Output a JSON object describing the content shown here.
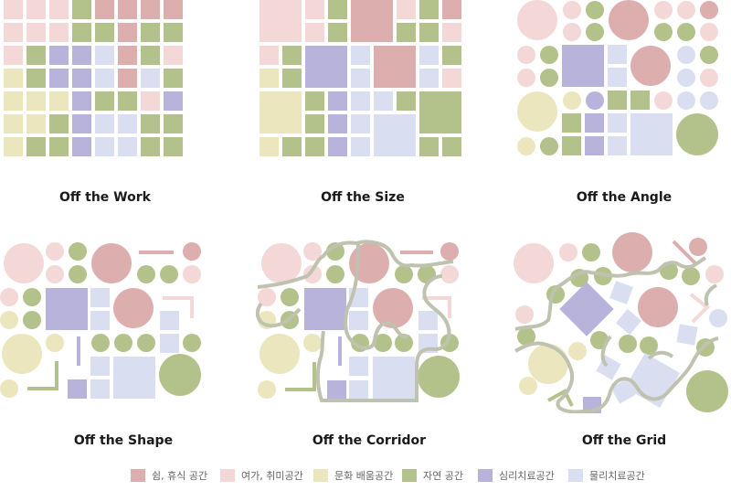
{
  "colors": {
    "rest": "#dcaeae",
    "hobby": "#f4d7d7",
    "culture": "#ebe6bd",
    "nature": "#b3c28b",
    "psych": "#b7b3db",
    "physio": "#d9dff1",
    "corridor": "#bfc2ae"
  },
  "captions": {
    "work": "Off the Work",
    "size": "Off the Size",
    "angle": "Off the Angle",
    "shape": "Off the Shape",
    "corridor": "Off the Corridor",
    "grid": "Off the Grid"
  },
  "legend": [
    {
      "key": "rest",
      "label": "쉼, 휴식 공간"
    },
    {
      "key": "hobby",
      "label": "여가, 취미공간"
    },
    {
      "key": "culture",
      "label": "문화 배움공간"
    },
    {
      "key": "nature",
      "label": "자연 공간"
    },
    {
      "key": "psych",
      "label": "심리치료공간"
    },
    {
      "key": "physio",
      "label": "물리치료공간"
    }
  ],
  "work_grid": [
    [
      "hobby",
      "hobby",
      "hobby",
      "nature",
      "rest",
      "rest",
      "rest",
      "rest"
    ],
    [
      "hobby",
      "hobby",
      "hobby",
      "nature",
      "nature",
      "rest",
      "nature",
      "nature"
    ],
    [
      "hobby",
      "nature",
      "psych",
      "psych",
      "physio",
      "rest",
      "nature",
      "hobby"
    ],
    [
      "culture",
      "nature",
      "psych",
      "psych",
      "physio",
      "rest",
      "physio",
      "nature"
    ],
    [
      "culture",
      "culture",
      "culture",
      "psych",
      "nature",
      "nature",
      "hobby",
      "psych"
    ],
    [
      "culture",
      "culture",
      "nature",
      "psych",
      "physio",
      "physio",
      "nature",
      "nature"
    ],
    [
      "culture",
      "nature",
      "nature",
      "psych",
      "physio",
      "physio",
      "nature",
      "nature"
    ]
  ]
}
